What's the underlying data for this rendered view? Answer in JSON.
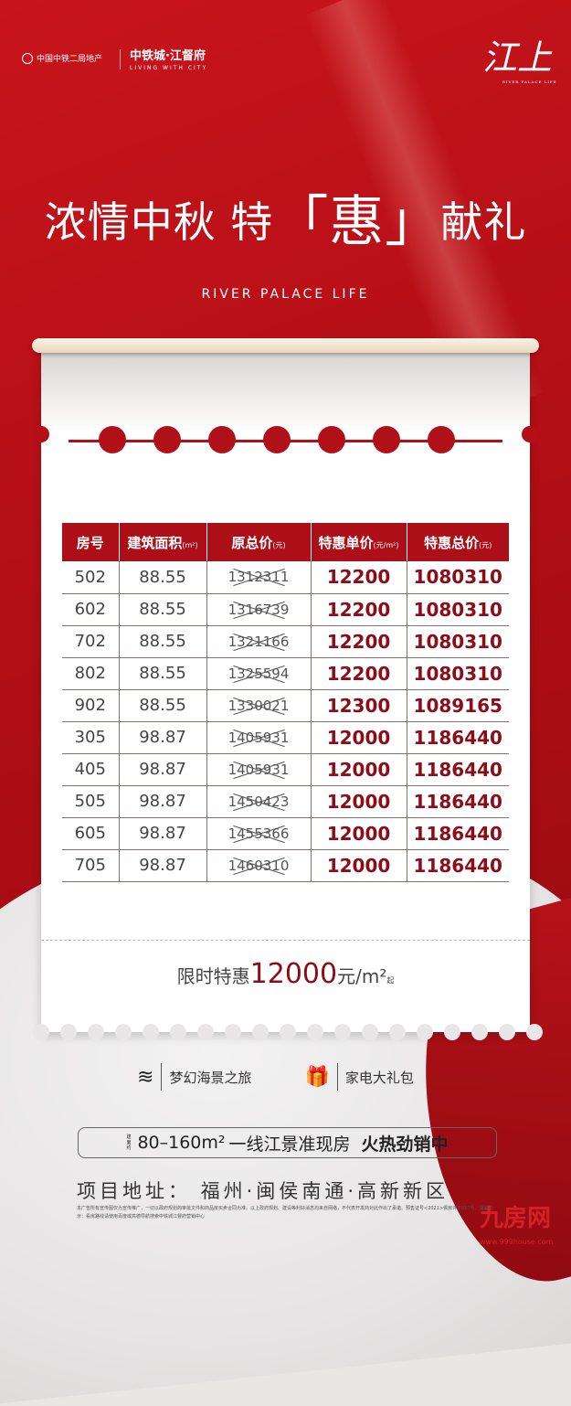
{
  "header": {
    "developer": "中国中铁二局地产",
    "brand": "中铁城·江督府",
    "brand_tagline": "LIVING WITH CITY",
    "logo_glyph": "江上",
    "logo_tagline": "RIVER PALACE LIFE"
  },
  "title": {
    "part1": "浓情中秋 特",
    "highlight": "「惠」",
    "part2": "献礼"
  },
  "subtitle": "RIVER PALACE LIFE",
  "table": {
    "headers": [
      {
        "label": "房号",
        "unit": ""
      },
      {
        "label": "建筑面积",
        "unit": "(m²)"
      },
      {
        "label": "原总价",
        "unit": "(元)"
      },
      {
        "label": "特惠单价",
        "unit": "(元/m²)"
      },
      {
        "label": "特惠总价",
        "unit": "(元)"
      }
    ],
    "rows": [
      [
        "502",
        "88.55",
        "1312311",
        "12200",
        "1080310"
      ],
      [
        "602",
        "88.55",
        "1316739",
        "12200",
        "1080310"
      ],
      [
        "702",
        "88.55",
        "1321166",
        "12200",
        "1080310"
      ],
      [
        "802",
        "88.55",
        "1325594",
        "12200",
        "1080310"
      ],
      [
        "902",
        "88.55",
        "1330021",
        "12300",
        "1089165"
      ],
      [
        "305",
        "98.87",
        "1405931",
        "12000",
        "1186440"
      ],
      [
        "405",
        "98.87",
        "1405931",
        "12000",
        "1186440"
      ],
      [
        "505",
        "98.87",
        "1450423",
        "12000",
        "1186440"
      ],
      [
        "605",
        "98.87",
        "1455366",
        "12000",
        "1186440"
      ],
      [
        "705",
        "98.87",
        "1460310",
        "12000",
        "1186440"
      ]
    ]
  },
  "promo": {
    "prefix": "限时特惠",
    "price": "12000",
    "unit": "元/m²",
    "suffix": "起"
  },
  "gifts": [
    {
      "icon": "waves-icon",
      "label": "梦幻海景之旅"
    },
    {
      "icon": "gift-icon",
      "label": "家电大礼包"
    }
  ],
  "banner": {
    "small": "建面约",
    "area": "80–160m²",
    "text": "一线江景准现房",
    "bold": "火热劲销中"
  },
  "address": "项目地址： 福州·闽侯南通·高新新区",
  "disclaimer": "本广告所有宣传图仅为宣传推广，一切以政府规划的审批文件和商品房买卖合同为准。以上政府规划、建设等利好消息均来自网络，不代表开发商对此作出了承诺。预售证号<2021>侯房许字057号。温馨提示：看房路线请使用百度或高德导航搜索中铁城江督府营销中心",
  "watermark": {
    "name": "九房网",
    "url": "www.999house.com"
  },
  "colors": {
    "brand_red": "#b40f17",
    "price_red": "#8c0d17"
  }
}
